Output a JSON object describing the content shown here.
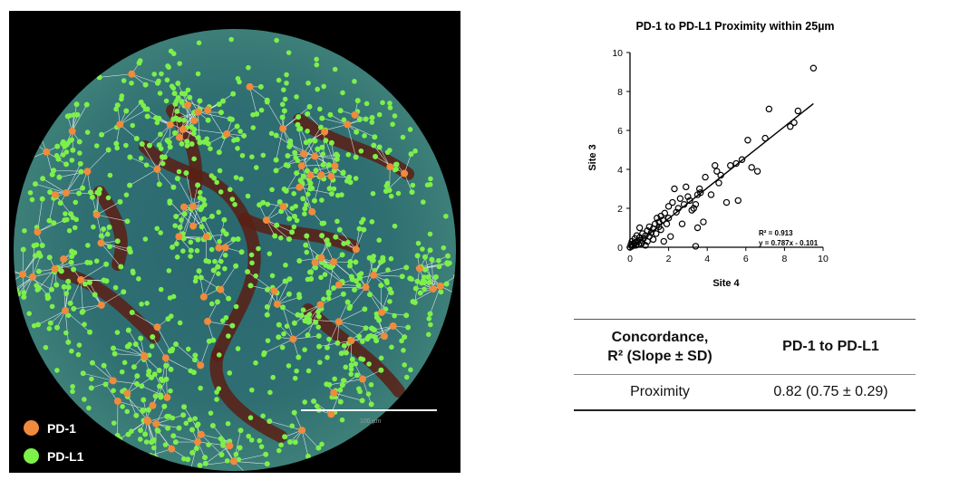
{
  "image": {
    "scale_bar_label": "100 µm",
    "colors": {
      "background": "#000000",
      "tissue": "#2f6f72",
      "stroma": "#5a1e14",
      "pd1": "#f08a3c",
      "pdl1": "#7df04a",
      "link": "#ffffff"
    },
    "legend": [
      {
        "label": "PD-1",
        "color": "#f08a3c"
      },
      {
        "label": "PD-L1",
        "color": "#7df04a"
      }
    ]
  },
  "chart_data": {
    "type": "scatter",
    "title": "PD-1 to PD-L1 Proximity within 25µm",
    "xlabel": "Site 4",
    "ylabel": "Site 3",
    "xlim": [
      0,
      10
    ],
    "ylim": [
      0,
      10
    ],
    "xticks": [
      "0",
      "2",
      "4",
      "6",
      "8",
      "10"
    ],
    "yticks": [
      "0",
      "2",
      "4",
      "6",
      "8",
      "10"
    ],
    "grid": false,
    "marker": "open-circle",
    "series": [
      {
        "points": [
          [
            0.0,
            0.0
          ],
          [
            0.05,
            0.15
          ],
          [
            0.1,
            0.05
          ],
          [
            0.1,
            0.3
          ],
          [
            0.15,
            0.1
          ],
          [
            0.2,
            0.2
          ],
          [
            0.25,
            0.45
          ],
          [
            0.3,
            0.1
          ],
          [
            0.3,
            0.25
          ],
          [
            0.35,
            0.6
          ],
          [
            0.4,
            0.3
          ],
          [
            0.45,
            0.15
          ],
          [
            0.5,
            0.5
          ],
          [
            0.5,
            1.0
          ],
          [
            0.55,
            0.35
          ],
          [
            0.6,
            0.2
          ],
          [
            0.65,
            0.7
          ],
          [
            0.7,
            0.45
          ],
          [
            0.8,
            0.1
          ],
          [
            0.8,
            0.6
          ],
          [
            0.9,
            0.3
          ],
          [
            0.9,
            0.85
          ],
          [
            1.0,
            0.55
          ],
          [
            1.0,
            1.05
          ],
          [
            1.1,
            0.75
          ],
          [
            1.2,
            0.4
          ],
          [
            1.2,
            0.95
          ],
          [
            1.3,
            1.2
          ],
          [
            1.35,
            0.7
          ],
          [
            1.4,
            1.5
          ],
          [
            1.5,
            1.05
          ],
          [
            1.5,
            1.3
          ],
          [
            1.6,
            0.9
          ],
          [
            1.6,
            1.6
          ],
          [
            1.7,
            1.4
          ],
          [
            1.75,
            0.3
          ],
          [
            1.8,
            1.75
          ],
          [
            1.9,
            1.2
          ],
          [
            2.0,
            2.1
          ],
          [
            2.0,
            1.5
          ],
          [
            2.1,
            0.55
          ],
          [
            2.2,
            2.3
          ],
          [
            2.3,
            3.0
          ],
          [
            2.4,
            1.8
          ],
          [
            2.5,
            2.0
          ],
          [
            2.6,
            2.5
          ],
          [
            2.7,
            1.2
          ],
          [
            2.8,
            2.2
          ],
          [
            2.9,
            3.1
          ],
          [
            3.0,
            2.6
          ],
          [
            3.1,
            2.4
          ],
          [
            3.2,
            1.9
          ],
          [
            3.3,
            2.0
          ],
          [
            3.4,
            2.2
          ],
          [
            3.5,
            1.0
          ],
          [
            3.5,
            2.7
          ],
          [
            3.6,
            3.0
          ],
          [
            3.65,
            2.8
          ],
          [
            3.8,
            1.3
          ],
          [
            3.9,
            3.6
          ],
          [
            3.4,
            0.05
          ],
          [
            4.2,
            2.7
          ],
          [
            4.4,
            4.2
          ],
          [
            4.5,
            3.9
          ],
          [
            4.6,
            3.3
          ],
          [
            4.7,
            3.7
          ],
          [
            5.0,
            2.3
          ],
          [
            5.2,
            4.2
          ],
          [
            5.5,
            4.3
          ],
          [
            5.6,
            2.4
          ],
          [
            5.8,
            4.5
          ],
          [
            6.1,
            5.5
          ],
          [
            6.3,
            4.1
          ],
          [
            6.6,
            3.9
          ],
          [
            7.0,
            5.6
          ],
          [
            7.2,
            7.1
          ],
          [
            8.3,
            6.2
          ],
          [
            8.5,
            6.4
          ],
          [
            8.7,
            7.0
          ],
          [
            9.5,
            9.2
          ]
        ]
      }
    ],
    "fit": {
      "slope": 0.787,
      "intercept": -0.101,
      "x_range": [
        0,
        9.5
      ]
    },
    "annotations": [
      "R² = 0.913",
      "y = 0.787x - 0.101"
    ]
  },
  "table": {
    "header_col1_line1": "Concordance,",
    "header_col1_line2": "R² (Slope ± SD)",
    "header_col2": "PD-1 to PD-L1",
    "row_label": "Proximity",
    "row_value": "0.82 (0.75 ± 0.29)"
  }
}
